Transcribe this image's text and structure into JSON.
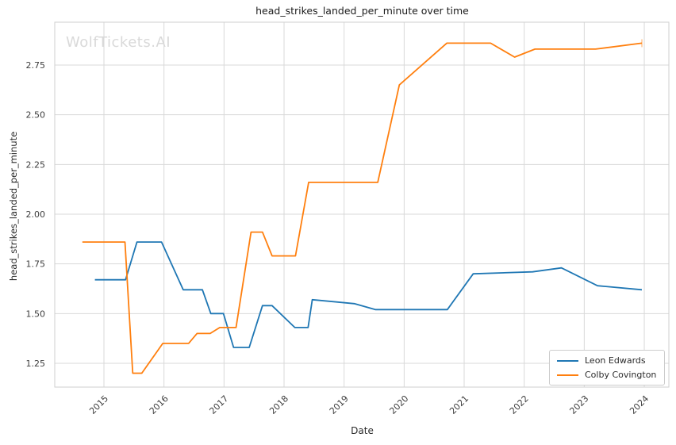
{
  "title": "head_strikes_landed_per_minute over time",
  "watermark": "WolfTickets.AI",
  "axes": {
    "x_label": "Date",
    "y_label": "head_strikes_landed_per_minute"
  },
  "legend": {
    "position": "lower right",
    "items": [
      "Leon Edwards",
      "Colby Covington"
    ]
  },
  "colors": {
    "leon_edwards": "#1f77b4",
    "colby_covington": "#ff7f0e",
    "grid": "#d9d9d9",
    "spine": "#cfcfcf",
    "tick_text": "#3d3d3d",
    "watermark": "#d9d9d9"
  },
  "chart_data": {
    "type": "line",
    "title": "head_strikes_landed_per_minute over time",
    "xlabel": "Date",
    "ylabel": "head_strikes_landed_per_minute",
    "grid": true,
    "legend_position": "lower right",
    "x_unit": "decimal_year",
    "xticks": [
      "2015",
      "2016",
      "2017",
      "2018",
      "2019",
      "2020",
      "2021",
      "2022",
      "2023",
      "2024"
    ],
    "yticks": [
      "1.25",
      "1.50",
      "1.75",
      "2.00",
      "2.25",
      "2.50",
      "2.75"
    ],
    "xlim": [
      2014.19,
      2024.41
    ],
    "ylim": [
      1.11,
      2.96
    ],
    "series": [
      {
        "name": "Leon Edwards",
        "color": "#1f77b4",
        "end_marker": false,
        "points": [
          [
            2014.85,
            1.67
          ],
          [
            2015.36,
            1.67
          ],
          [
            2015.55,
            1.86
          ],
          [
            2015.96,
            1.86
          ],
          [
            2016.32,
            1.62
          ],
          [
            2016.64,
            1.62
          ],
          [
            2016.78,
            1.5
          ],
          [
            2016.99,
            1.5
          ],
          [
            2017.16,
            1.33
          ],
          [
            2017.42,
            1.33
          ],
          [
            2017.64,
            1.54
          ],
          [
            2017.8,
            1.54
          ],
          [
            2018.18,
            1.43
          ],
          [
            2018.4,
            1.43
          ],
          [
            2018.47,
            1.57
          ],
          [
            2019.17,
            1.55
          ],
          [
            2019.52,
            1.52
          ],
          [
            2020.72,
            1.52
          ],
          [
            2021.15,
            1.7
          ],
          [
            2022.14,
            1.71
          ],
          [
            2022.62,
            1.73
          ],
          [
            2023.22,
            1.64
          ],
          [
            2023.96,
            1.62
          ]
        ]
      },
      {
        "name": "Colby Covington",
        "color": "#ff7f0e",
        "end_marker": true,
        "points": [
          [
            2014.64,
            1.86
          ],
          [
            2015.35,
            1.86
          ],
          [
            2015.48,
            1.2
          ],
          [
            2015.63,
            1.2
          ],
          [
            2015.98,
            1.35
          ],
          [
            2016.41,
            1.35
          ],
          [
            2016.55,
            1.4
          ],
          [
            2016.77,
            1.4
          ],
          [
            2016.93,
            1.43
          ],
          [
            2017.2,
            1.43
          ],
          [
            2017.45,
            1.91
          ],
          [
            2017.64,
            1.91
          ],
          [
            2017.8,
            1.79
          ],
          [
            2018.19,
            1.79
          ],
          [
            2018.41,
            2.16
          ],
          [
            2019.56,
            2.16
          ],
          [
            2019.92,
            2.65
          ],
          [
            2020.71,
            2.86
          ],
          [
            2021.44,
            2.86
          ],
          [
            2021.84,
            2.79
          ],
          [
            2022.18,
            2.83
          ],
          [
            2023.19,
            2.83
          ],
          [
            2023.96,
            2.86
          ]
        ]
      }
    ]
  }
}
